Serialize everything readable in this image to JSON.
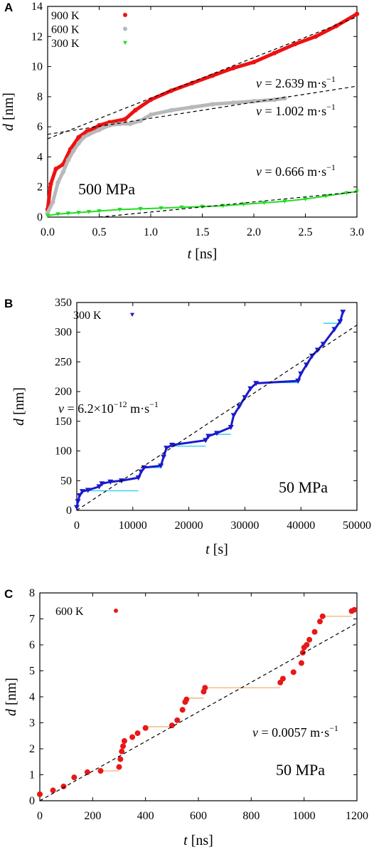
{
  "chart_data": [
    {
      "type": "scatter",
      "panel": "A",
      "xlabel": "t [ns]",
      "ylabel": "d [nm]",
      "xlim": [
        0,
        3
      ],
      "ylim": [
        0,
        14
      ],
      "x_ticks": [
        "0.0",
        "0.5",
        "1.0",
        "1.5",
        "2.0",
        "2.5",
        "3.0"
      ],
      "y_ticks": [
        "0",
        "2",
        "4",
        "6",
        "8",
        "10",
        "12",
        "14"
      ],
      "annotation": "500 MPa",
      "legend": {
        "placement": "top-left",
        "entries": [
          "900 K",
          "600 K",
          "300 K"
        ]
      },
      "series": [
        {
          "name": "900 K",
          "color": "#ee1111",
          "marker": "circle",
          "x": [
            0,
            0.03,
            0.08,
            0.15,
            0.22,
            0.3,
            0.38,
            0.45,
            0.5,
            0.6,
            0.75,
            0.85,
            1.0,
            1.2,
            1.4,
            1.6,
            1.8,
            2.0,
            2.2,
            2.4,
            2.6,
            2.8,
            3.0
          ],
          "y": [
            0.5,
            2.2,
            3.2,
            3.5,
            4.5,
            5.3,
            5.7,
            5.9,
            6.1,
            6.3,
            6.5,
            7.1,
            7.8,
            8.4,
            8.9,
            9.4,
            9.9,
            10.3,
            10.9,
            11.5,
            12.0,
            12.7,
            13.5
          ]
        },
        {
          "name": "600 K",
          "color": "#b8b8b8",
          "marker": "circle",
          "x": [
            0,
            0.05,
            0.1,
            0.15,
            0.2,
            0.25,
            0.3,
            0.35,
            0.4,
            0.5,
            0.6,
            0.7,
            0.8,
            0.9,
            1.0,
            1.2,
            1.4,
            1.6,
            1.8,
            2.0,
            2.2,
            2.3
          ],
          "y": [
            0.3,
            1.0,
            2.3,
            3.0,
            3.8,
            4.4,
            4.9,
            5.3,
            5.5,
            5.8,
            6.1,
            6.2,
            6.2,
            6.4,
            6.8,
            7.1,
            7.3,
            7.5,
            7.6,
            7.7,
            7.8,
            7.9
          ]
        },
        {
          "name": "300 K",
          "color": "#22dd22",
          "marker": "triangle-down",
          "x": [
            0,
            0.1,
            0.2,
            0.3,
            0.4,
            0.5,
            0.7,
            0.9,
            1.1,
            1.3,
            1.5,
            1.7,
            1.9,
            2.1,
            2.3,
            2.5,
            2.7,
            2.9,
            3.0
          ],
          "y": [
            0.1,
            0.2,
            0.25,
            0.3,
            0.35,
            0.4,
            0.5,
            0.55,
            0.6,
            0.65,
            0.7,
            0.75,
            0.85,
            0.95,
            1.05,
            1.2,
            1.4,
            1.6,
            1.7
          ]
        }
      ],
      "fit_lines": [
        {
          "label": "v = 2.639 m·s",
          "sup": "−1",
          "x": [
            0,
            3
          ],
          "y": [
            5.2,
            13.3
          ]
        },
        {
          "label": "v = 1.002 m·s",
          "sup": "−1",
          "x": [
            0,
            3
          ],
          "y": [
            5.5,
            8.7
          ]
        },
        {
          "label": "v = 0.666 m·s",
          "sup": "−1",
          "x": [
            0.5,
            3
          ],
          "y": [
            0,
            1.68
          ]
        }
      ]
    },
    {
      "type": "scatter",
      "panel": "B",
      "xlabel": "t [s]",
      "ylabel": "d [nm]",
      "xlim": [
        0,
        50000
      ],
      "ylim": [
        0,
        350
      ],
      "x_ticks": [
        "0",
        "10000",
        "20000",
        "30000",
        "40000",
        "50000"
      ],
      "y_ticks": [
        "0",
        "50",
        "100",
        "150",
        "200",
        "250",
        "300",
        "350"
      ],
      "annotation": "50 MPa",
      "legend": {
        "placement": "top-left",
        "entries": [
          "300 K"
        ]
      },
      "series": [
        {
          "name": "300 K",
          "color": "#1a1acc",
          "marker": "triangle-down",
          "x": [
            0,
            200,
            500,
            1000,
            2000,
            4000,
            4500,
            6000,
            8000,
            11000,
            11500,
            12000,
            15000,
            15500,
            16000,
            17000,
            23000,
            23500,
            25000,
            27500,
            28000,
            29000,
            30000,
            31000,
            32000,
            39500,
            40000,
            41000,
            42000,
            43000,
            44000,
            46000,
            47000,
            47500
          ],
          "y": [
            5,
            15,
            25,
            32,
            34,
            40,
            45,
            48,
            50,
            55,
            65,
            72,
            75,
            90,
            105,
            110,
            118,
            125,
            130,
            140,
            160,
            175,
            190,
            205,
            214,
            218,
            230,
            245,
            260,
            270,
            280,
            305,
            318,
            334
          ]
        }
      ],
      "plateaus": [
        {
          "x": [
            2000,
            11000
          ],
          "y": 33
        },
        {
          "x": [
            12000,
            15000
          ],
          "y": 72
        },
        {
          "x": [
            16500,
            23000
          ],
          "y": 108
        },
        {
          "x": [
            25000,
            27500
          ],
          "y": 128
        },
        {
          "x": [
            32000,
            39500
          ],
          "y": 215
        },
        {
          "x": [
            44000,
            46500
          ],
          "y": 315
        }
      ],
      "fit_lines": [
        {
          "label": "v = 6.2×10",
          "sup": "−12",
          "suffix": " m·s",
          "sup2": "−1",
          "x": [
            0,
            50000
          ],
          "y": [
            0,
            312
          ]
        }
      ]
    },
    {
      "type": "scatter",
      "panel": "C",
      "xlabel": "t [ns]",
      "ylabel": "d [nm]",
      "xlim": [
        0,
        1200
      ],
      "ylim": [
        0,
        8
      ],
      "x_ticks": [
        "0",
        "200",
        "400",
        "600",
        "800",
        "1000",
        "1200"
      ],
      "y_ticks": [
        "0",
        "1",
        "2",
        "3",
        "4",
        "5",
        "6",
        "7",
        "8"
      ],
      "annotation": "50 MPa",
      "legend": {
        "placement": "top-left",
        "entries": [
          "600 K"
        ]
      },
      "series": [
        {
          "name": "600 K",
          "color": "#e81818",
          "marker": "circle",
          "x": [
            0,
            50,
            90,
            130,
            180,
            230,
            300,
            305,
            310,
            315,
            320,
            350,
            370,
            400,
            500,
            520,
            540,
            550,
            555,
            620,
            625,
            910,
            920,
            960,
            990,
            995,
            1000,
            1010,
            1020,
            1040,
            1060,
            1070,
            1180,
            1190
          ],
          "y": [
            0.25,
            0.4,
            0.55,
            0.9,
            1.1,
            1.15,
            1.3,
            1.6,
            1.9,
            2.1,
            2.3,
            2.45,
            2.6,
            2.8,
            2.9,
            3.1,
            3.5,
            3.8,
            3.9,
            4.2,
            4.35,
            4.55,
            4.7,
            4.95,
            5.3,
            5.7,
            5.9,
            6.0,
            6.2,
            6.5,
            6.9,
            7.1,
            7.3,
            7.35
          ]
        }
      ],
      "plateaus": [
        {
          "x": [
            230,
            300
          ],
          "y": 1.15
        },
        {
          "x": [
            400,
            500
          ],
          "y": 2.85
        },
        {
          "x": [
            560,
            620
          ],
          "y": 3.95
        },
        {
          "x": [
            630,
            910
          ],
          "y": 4.35
        },
        {
          "x": [
            1070,
            1180
          ],
          "y": 7.1
        }
      ],
      "fit_lines": [
        {
          "label": "v = 0.0057 m·s",
          "sup": "−1",
          "x": [
            0,
            1200
          ],
          "y": [
            0,
            6.84
          ]
        }
      ]
    }
  ]
}
